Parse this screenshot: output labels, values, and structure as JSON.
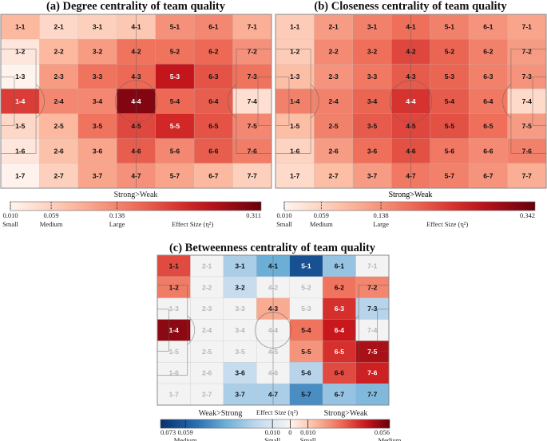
{
  "chart_data": [
    {
      "type": "heatmap",
      "title": "(a) Degree centrality of team quality",
      "rows": 7,
      "cols": 7,
      "columns": [
        "1",
        "2",
        "3",
        "4",
        "5",
        "6",
        "7"
      ],
      "rowsLabels": [
        "1",
        "2",
        "3",
        "4",
        "5",
        "6",
        "7"
      ],
      "values": [
        [
          0.08,
          0.04,
          0.05,
          0.06,
          0.12,
          0.13,
          0.09
        ],
        [
          0.02,
          0.08,
          0.11,
          0.15,
          0.15,
          0.16,
          0.12
        ],
        [
          0.003,
          0.11,
          0.15,
          0.16,
          0.24,
          0.18,
          0.15
        ],
        [
          0.2,
          0.13,
          0.13,
          0.29,
          0.16,
          0.17,
          0.03
        ],
        [
          0.04,
          0.08,
          0.15,
          0.19,
          0.22,
          0.18,
          0.13
        ],
        [
          0.02,
          0.07,
          0.1,
          0.17,
          0.13,
          0.17,
          0.14
        ],
        [
          0.004,
          0.05,
          0.1,
          0.12,
          0.1,
          0.08,
          0.05
        ]
      ],
      "colorbar": {
        "heading": "Strong>Weak",
        "min": 0.01,
        "max": 0.311,
        "ticks": [
          "0.010",
          "0.059",
          "0.138",
          "0.311"
        ],
        "tickValues": [
          0.01,
          0.059,
          0.138,
          0.311
        ],
        "sizes": [
          "Small",
          "Medium",
          "Large"
        ],
        "effectLabel": "Effect Size (η²)",
        "scale": "reds"
      }
    },
    {
      "type": "heatmap",
      "title": "(b) Closeness centrality of team quality",
      "rows": 7,
      "cols": 7,
      "values": [
        [
          0.06,
          0.12,
          0.15,
          0.17,
          0.15,
          0.13,
          0.11
        ],
        [
          0.06,
          0.14,
          0.17,
          0.21,
          0.18,
          0.15,
          0.12
        ],
        [
          0.08,
          0.13,
          0.16,
          0.19,
          0.18,
          0.15,
          0.13
        ],
        [
          0.15,
          0.15,
          0.18,
          0.23,
          0.19,
          0.16,
          0.04
        ],
        [
          0.08,
          0.15,
          0.19,
          0.21,
          0.2,
          0.17,
          0.12
        ],
        [
          0.05,
          0.12,
          0.17,
          0.2,
          0.16,
          0.14,
          0.15
        ],
        [
          0.04,
          0.08,
          0.12,
          0.16,
          0.15,
          0.13,
          0.1
        ]
      ],
      "colorbar": {
        "heading": "Strong>Weak",
        "min": 0.01,
        "max": 0.342,
        "ticks": [
          "0.010",
          "0.059",
          "0.138",
          "0.342"
        ],
        "tickValues": [
          0.01,
          0.059,
          0.138,
          0.342
        ],
        "sizes": [
          "Small",
          "Medium",
          "Large"
        ],
        "effectLabel": "Effect Size (η²)",
        "scale": "reds"
      }
    },
    {
      "type": "heatmap",
      "title": "(c) Betweenness centrality of team quality",
      "rows": 7,
      "cols": 7,
      "values": [
        [
          0.03,
          0.0,
          -0.015,
          -0.03,
          -0.06,
          -0.02,
          0.0
        ],
        [
          0.02,
          0.0,
          -0.008,
          0.0,
          0.0,
          0.022,
          0.018
        ],
        [
          0.0,
          0.0,
          0.0,
          0.01,
          0.0,
          0.035,
          -0.012
        ],
        [
          0.05,
          0.0,
          0.0,
          0.0,
          0.022,
          0.04,
          0.0
        ],
        [
          0.0,
          0.0,
          0.0,
          0.0,
          0.015,
          0.035,
          0.045
        ],
        [
          0.0,
          0.0,
          -0.008,
          0.0,
          -0.012,
          0.03,
          0.038
        ],
        [
          0.0,
          0.0,
          -0.015,
          -0.015,
          -0.04,
          -0.02,
          -0.025
        ]
      ],
      "colorbar": {
        "leftHeading": "Weak>Strong",
        "rightHeading": "Strong>Weak",
        "centerLabel": "Effect Size (η²)",
        "min": -0.073,
        "max": 0.056,
        "ticks": [
          "0.073",
          "0.059",
          "0.010",
          "0",
          "0.010",
          "0.056"
        ],
        "tickValues": [
          -0.073,
          -0.059,
          -0.01,
          0,
          0.01,
          0.056
        ],
        "sizes": [
          "Medium",
          "Small",
          "Small",
          "Medium"
        ],
        "sizeValues": [
          -0.059,
          -0.01,
          0.01,
          0.056
        ],
        "scale": "diverging"
      }
    }
  ]
}
